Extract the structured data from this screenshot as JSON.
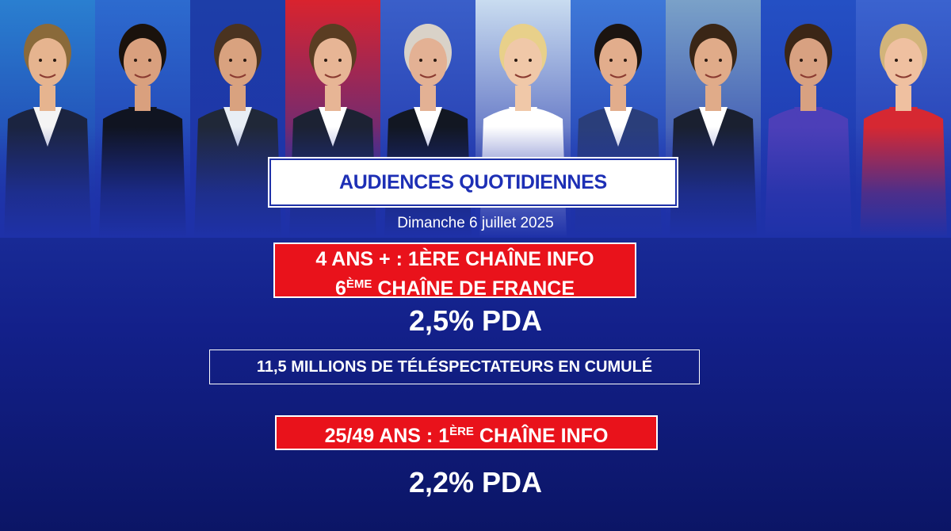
{
  "presenters": [
    {
      "bg": "#2a7fd0",
      "skin": "#e6b48f",
      "hair": "#8a6a3a",
      "shirt": "#f4f4f4",
      "jacket": "#1b2440"
    },
    {
      "bg": "#2d6bcf",
      "skin": "#d9a07e",
      "hair": "#1a120c",
      "shirt": "#101421",
      "jacket": "#101421"
    },
    {
      "bg": "#1d3ea8",
      "skin": "#d9a27f",
      "hair": "#4a3320",
      "shirt": "#e8eef5",
      "jacket": "#202838"
    },
    {
      "bg": "#d9232e",
      "skin": "#e7b595",
      "hair": "#5a3d22",
      "shirt": "#ffffff",
      "jacket": "#1c2233"
    },
    {
      "bg": "#3a5fc9",
      "skin": "#e3b194",
      "hair": "#d9d2c8",
      "shirt": "#ffffff",
      "jacket": "#121722"
    },
    {
      "bg": "#c9dcf0",
      "skin": "#f0c8a8",
      "hair": "#e8d08a",
      "shirt": "#ffffff",
      "jacket": "#ffffff"
    },
    {
      "bg": "#3e78d8",
      "skin": "#e2ad8c",
      "hair": "#1b1410",
      "shirt": "#ffffff",
      "jacket": "#2a3e7a"
    },
    {
      "bg": "#7aa1c8",
      "skin": "#e0ab89",
      "hair": "#3a2616",
      "shirt": "#ffffff",
      "jacket": "#1a2030"
    },
    {
      "bg": "#2450c4",
      "skin": "#d8a181",
      "hair": "#3b2616",
      "shirt": "#4c3fb8",
      "jacket": "#4c3fb8"
    },
    {
      "bg": "#3b63cf",
      "skin": "#efc0a0",
      "hair": "#d2b47a",
      "shirt": "#d62832",
      "jacket": "#d62832"
    }
  ],
  "title": "AUDIENCES QUOTIDIENNES",
  "date": "Dimanche 6 juillet 2025",
  "headline1": {
    "line1": "4 ANS + : 1ÈRE CHAÎNE INFO",
    "line2_prefix": "6",
    "line2_sup": "ÈME",
    "line2_rest": " CHAÎNE DE FRANCE"
  },
  "pda1": "2,5% PDA",
  "cumul": "11,5 MILLIONS DE TÉLÉSPECTATEURS EN CUMULÉ",
  "headline2": {
    "prefix": "25/49 ANS : 1",
    "sup": "ÈRE",
    "rest": " CHAÎNE INFO"
  },
  "pda2": "2,2% PDA",
  "colors": {
    "brand_blue": "#1d2fb5",
    "accent_red": "#e9121b",
    "background": "#13208a"
  }
}
